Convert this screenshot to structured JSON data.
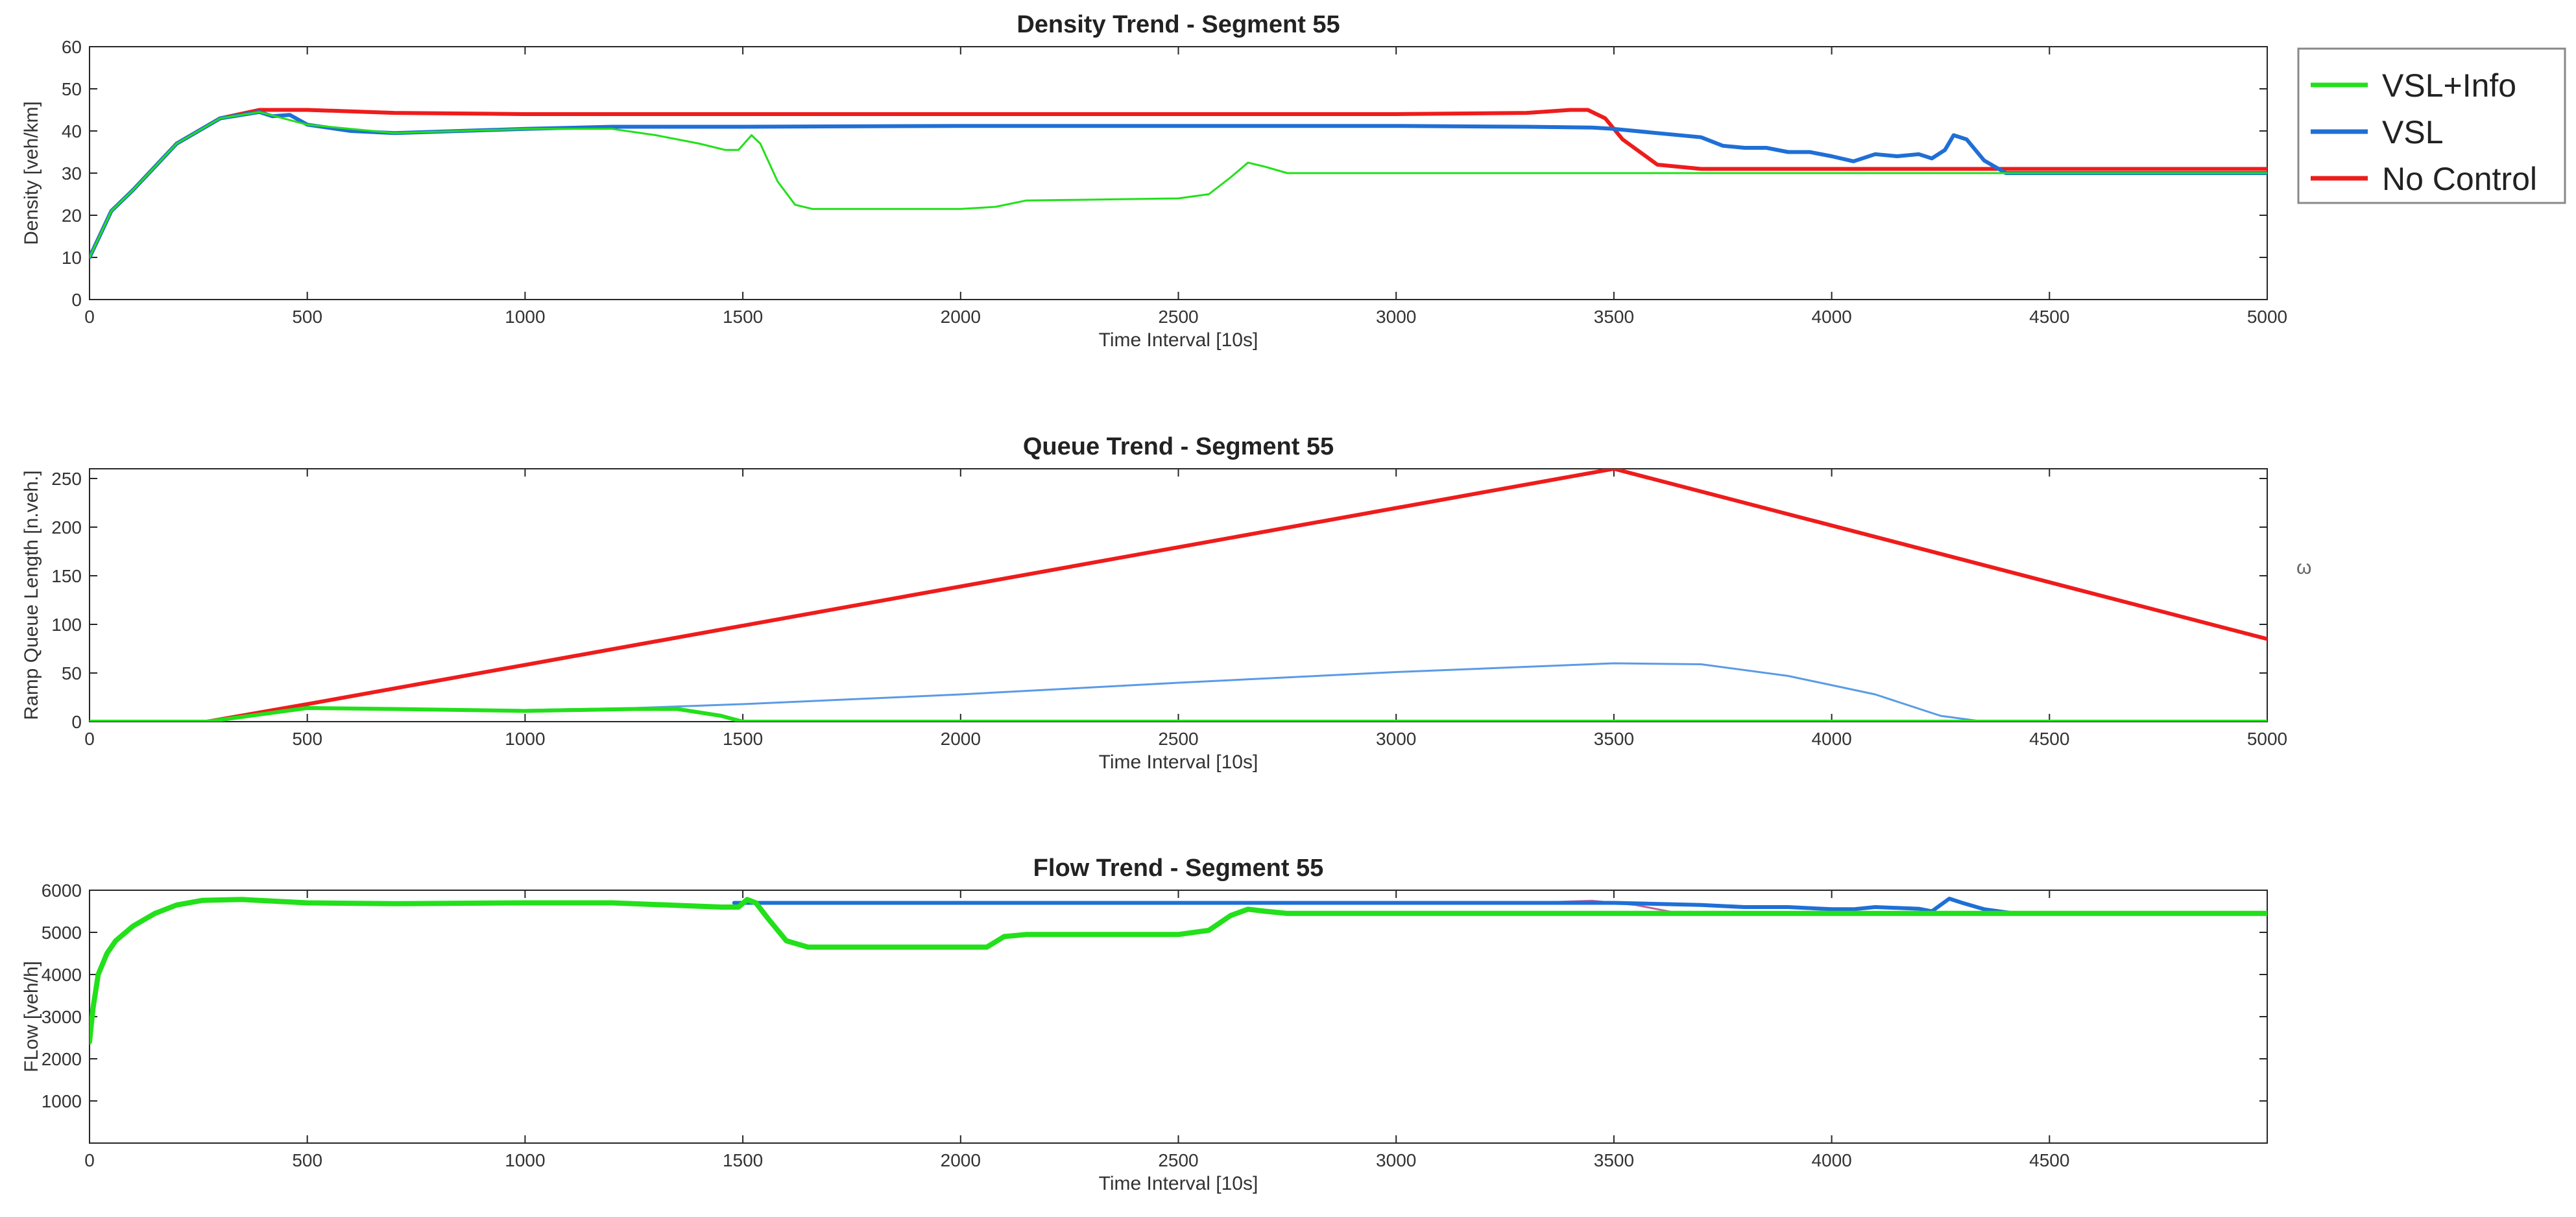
{
  "figure": {
    "stray_mark": "ω"
  },
  "legend": {
    "entries": [
      {
        "name": "VSL+Info",
        "color": "#22e01a"
      },
      {
        "name": "VSL",
        "color": "#1f6fd6"
      },
      {
        "name": "No Control",
        "color": "#ee1c1c"
      }
    ]
  },
  "chart_data": [
    {
      "type": "line",
      "title": "Density Trend  - Segment 55",
      "xlabel": "Time Interval [10s]",
      "ylabel": "Density [veh/km]",
      "xlim": [
        0,
        5000
      ],
      "ylim": [
        0,
        60
      ],
      "xticks": [
        0,
        500,
        1000,
        1500,
        2000,
        2500,
        3000,
        3500,
        4000,
        4500,
        5000
      ],
      "yticks": [
        0,
        10,
        20,
        30,
        40,
        50,
        60
      ],
      "series": [
        {
          "name": "No Control",
          "color": "#ee1c1c",
          "width": 6,
          "x": [
            0,
            50,
            100,
            200,
            300,
            390,
            500,
            700,
            1000,
            2000,
            3000,
            3300,
            3400,
            3440,
            3480,
            3520,
            3600,
            3700,
            4000,
            5000
          ],
          "y": [
            10,
            21,
            26,
            37,
            43,
            45,
            45,
            44.3,
            44,
            44,
            44,
            44.3,
            45,
            45,
            43,
            38,
            32,
            31,
            31,
            31
          ]
        },
        {
          "name": "VSL",
          "color": "#1f6fd6",
          "width": 6,
          "x": [
            0,
            50,
            100,
            200,
            300,
            390,
            420,
            460,
            500,
            600,
            700,
            1000,
            1200,
            1500,
            2000,
            3000,
            3300,
            3450,
            3500,
            3600,
            3700,
            3750,
            3800,
            3850,
            3900,
            3950,
            4000,
            4050,
            4100,
            4150,
            4200,
            4230,
            4260,
            4280,
            4310,
            4350,
            4400,
            5000
          ],
          "y": [
            10,
            21,
            26,
            37,
            43,
            44.5,
            43.5,
            43.8,
            41.5,
            40,
            39.5,
            40.5,
            41,
            41,
            41.2,
            41.2,
            41,
            40.8,
            40.5,
            39.5,
            38.5,
            36.5,
            36,
            36,
            35,
            35,
            34,
            32.8,
            34.5,
            34,
            34.5,
            33.5,
            35.5,
            39,
            38,
            33,
            30,
            30
          ]
        },
        {
          "name": "VSL+Info",
          "color": "#22e01a",
          "width": 3,
          "x": [
            0,
            50,
            100,
            200,
            300,
            390,
            500,
            700,
            1000,
            1200,
            1300,
            1400,
            1460,
            1490,
            1520,
            1540,
            1580,
            1620,
            1660,
            2000,
            2080,
            2150,
            2500,
            2570,
            2620,
            2660,
            2700,
            2750,
            3000,
            5000
          ],
          "y": [
            10,
            21,
            26,
            37,
            43,
            44.5,
            41.5,
            39.5,
            40.5,
            40.5,
            39,
            37,
            35.5,
            35.5,
            39,
            37,
            28,
            22.5,
            21.5,
            21.5,
            22,
            23.5,
            24,
            25,
            29,
            32.5,
            31.5,
            30,
            30,
            30
          ]
        }
      ]
    },
    {
      "type": "line",
      "title": "Queue Trend  - Segment 55",
      "xlabel": "Time Interval [10s]",
      "ylabel": "Ramp Queue Length [n.veh.]",
      "xlim": [
        0,
        5000
      ],
      "ylim": [
        0,
        260
      ],
      "xticks": [
        0,
        500,
        1000,
        1500,
        2000,
        2500,
        3000,
        3500,
        4000,
        4500,
        5000
      ],
      "yticks": [
        0,
        50,
        100,
        150,
        200,
        250
      ],
      "series": [
        {
          "name": "No Control",
          "color": "#ee1c1c",
          "width": 6,
          "x": [
            0,
            270,
            500,
            3500,
            5000
          ],
          "y": [
            0,
            0,
            18,
            260,
            85
          ]
        },
        {
          "name": "VSL",
          "color": "#5a9be6",
          "width": 3,
          "x": [
            0,
            270,
            500,
            700,
            1000,
            1250,
            1500,
            2000,
            2500,
            3000,
            3500,
            3700,
            3900,
            4100,
            4250,
            4350,
            5000
          ],
          "y": [
            0,
            0,
            15,
            13,
            12,
            14,
            18,
            28,
            40,
            51,
            60,
            59,
            47,
            28,
            6,
            0,
            0
          ]
        },
        {
          "name": "VSL+Info",
          "color": "#22e01a",
          "width": 6,
          "x": [
            0,
            270,
            500,
            700,
            1000,
            1250,
            1350,
            1450,
            1500,
            5000
          ],
          "y": [
            0,
            0,
            14,
            13,
            11,
            13,
            13,
            6,
            0,
            0
          ]
        }
      ]
    },
    {
      "type": "line",
      "title": "Flow Trend  - Segment 55",
      "xlabel": "Time Interval [10s]",
      "ylabel": "FLow [veh/h]",
      "xlim": [
        0,
        5000
      ],
      "ylim": [
        0,
        6000
      ],
      "xticks": [
        0,
        500,
        1000,
        1500,
        2000,
        2500,
        3000,
        3500,
        4000,
        4500
      ],
      "yticks": [
        1000,
        2000,
        3000,
        4000,
        5000,
        6000
      ],
      "series": [
        {
          "name": "No Control",
          "color": "#c060a0",
          "width": 3,
          "x": [
            3300,
            3450,
            3550,
            3650,
            5000
          ],
          "y": [
            5700,
            5750,
            5650,
            5450,
            5450
          ]
        },
        {
          "name": "VSL",
          "color": "#1f6fd6",
          "width": 6,
          "x": [
            1480,
            2000,
            3000,
            3500,
            3700,
            3800,
            3900,
            4000,
            4050,
            4100,
            4200,
            4230,
            4270,
            4300,
            4350,
            4420,
            5000
          ],
          "y": [
            5700,
            5700,
            5700,
            5700,
            5650,
            5600,
            5600,
            5550,
            5550,
            5600,
            5560,
            5500,
            5800,
            5700,
            5550,
            5450,
            5450
          ]
        },
        {
          "name": "VSL+Info",
          "color": "#22e01a",
          "width": 8,
          "x": [
            0,
            8,
            20,
            40,
            60,
            100,
            150,
            200,
            260,
            350,
            500,
            700,
            1000,
            1200,
            1450,
            1490,
            1510,
            1530,
            1560,
            1600,
            1650,
            2000,
            2060,
            2100,
            2150,
            2500,
            2570,
            2620,
            2660,
            2700,
            2750,
            3000,
            5000
          ],
          "y": [
            2400,
            3200,
            4000,
            4500,
            4800,
            5150,
            5450,
            5650,
            5760,
            5780,
            5700,
            5680,
            5700,
            5700,
            5600,
            5600,
            5780,
            5700,
            5300,
            4800,
            4650,
            4650,
            4650,
            4900,
            4950,
            4950,
            5050,
            5400,
            5550,
            5500,
            5450,
            5450,
            5450
          ]
        }
      ]
    }
  ]
}
